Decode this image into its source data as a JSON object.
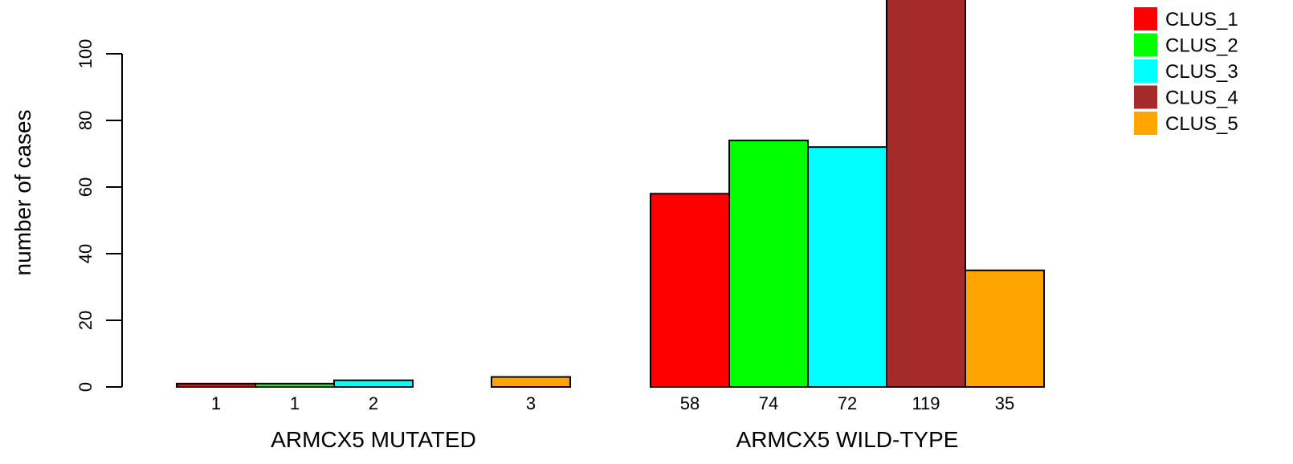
{
  "chart_data": {
    "type": "bar",
    "ylabel": "number of cases",
    "ylim": [
      0,
      119
    ],
    "yticks": [
      0,
      20,
      40,
      60,
      80,
      100
    ],
    "groups": [
      {
        "label": "ARMCX5 MUTATED",
        "values": [
          1,
          1,
          2,
          0,
          3
        ],
        "count_labels": [
          "1",
          "1",
          "2",
          "",
          "3"
        ]
      },
      {
        "label": "ARMCX5 WILD-TYPE",
        "values": [
          58,
          74,
          72,
          119,
          35
        ],
        "count_labels": [
          "58",
          "74",
          "72",
          "119",
          "35"
        ]
      }
    ],
    "series": [
      {
        "name": "CLUS_1",
        "color": "#ff0000"
      },
      {
        "name": "CLUS_2",
        "color": "#00ff00"
      },
      {
        "name": "CLUS_3",
        "color": "#00ffff"
      },
      {
        "name": "CLUS_4",
        "color": "#a52a2a"
      },
      {
        "name": "CLUS_5",
        "color": "#ffa500"
      }
    ],
    "legend_position": "top-right",
    "grid": false
  }
}
